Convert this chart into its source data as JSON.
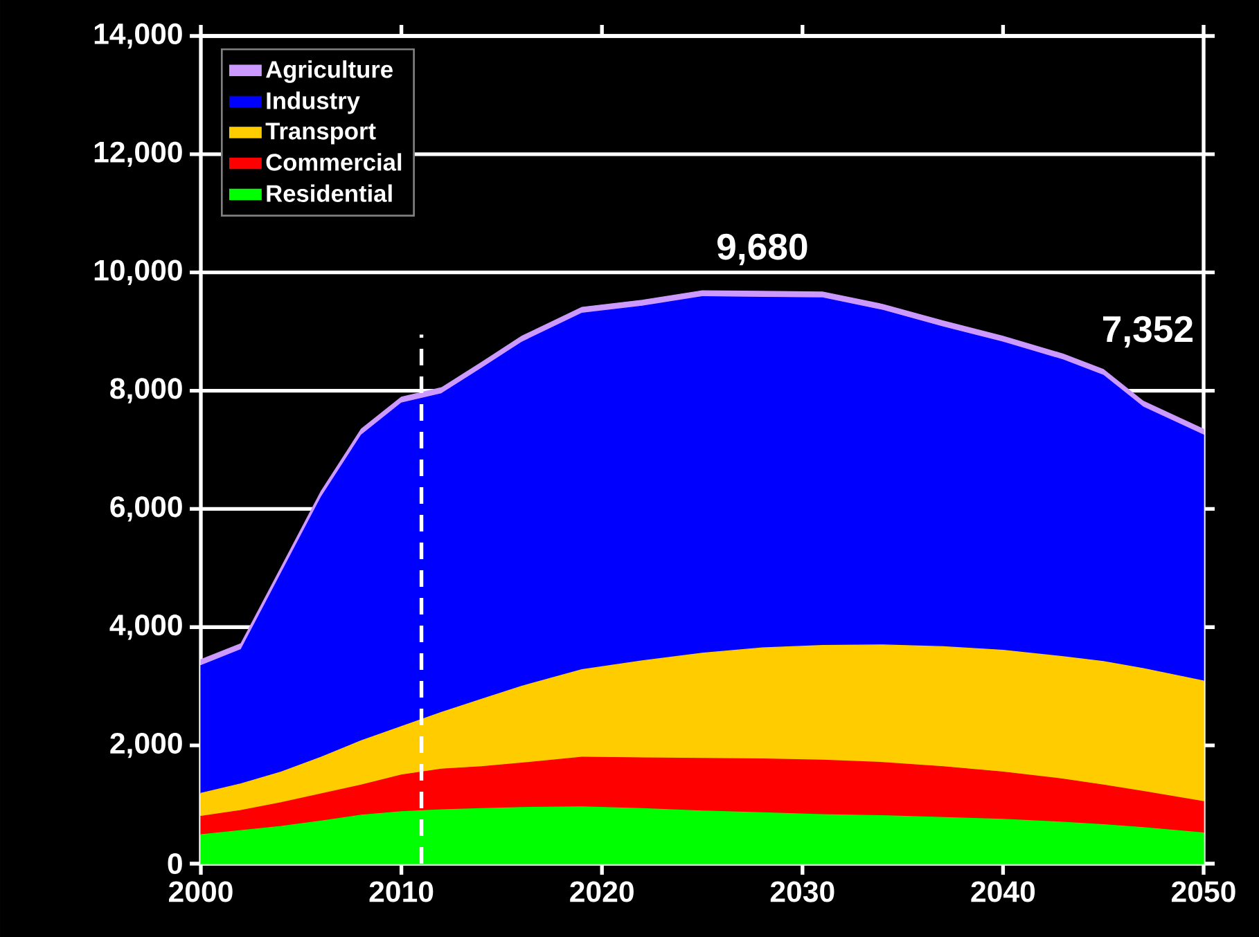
{
  "chart_data": {
    "type": "area",
    "stacked": true,
    "x": [
      2000,
      2002,
      2004,
      2006,
      2008,
      2010,
      2012,
      2014,
      2016,
      2019,
      2022,
      2025,
      2028,
      2031,
      2034,
      2037,
      2040,
      2043,
      2045,
      2047,
      2050
    ],
    "series": [
      {
        "name": "Residential",
        "color": "#00ff00",
        "values": [
          490,
          560,
          630,
          720,
          820,
          880,
          910,
          930,
          950,
          960,
          930,
          890,
          860,
          830,
          810,
          780,
          750,
          700,
          660,
          610,
          520
        ]
      },
      {
        "name": "Commercial",
        "color": "#ff0000",
        "values": [
          310,
          340,
          400,
          460,
          510,
          620,
          690,
          710,
          750,
          840,
          860,
          890,
          910,
          920,
          900,
          860,
          800,
          730,
          670,
          610,
          530
        ]
      },
      {
        "name": "Transport",
        "color": "#ffcc00",
        "values": [
          390,
          450,
          520,
          620,
          750,
          820,
          960,
          1140,
          1300,
          1480,
          1640,
          1780,
          1880,
          1940,
          1990,
          2030,
          2060,
          2070,
          2090,
          2080,
          2040
        ]
      },
      {
        "name": "Industry",
        "color": "#0000ff",
        "values": [
          2160,
          2270,
          3360,
          4400,
          5170,
          5470,
          5390,
          5600,
          5820,
          6030,
          6000,
          6030,
          5930,
          5880,
          5660,
          5410,
          5210,
          5020,
          4840,
          4420,
          4160
        ]
      },
      {
        "name": "Agriculture",
        "color": "#cc99ff",
        "values": [
          100,
          100,
          100,
          100,
          100,
          100,
          100,
          100,
          100,
          100,
          100,
          100,
          100,
          100,
          100,
          100,
          100,
          100,
          100,
          100,
          100
        ]
      }
    ],
    "xlim": [
      2000,
      2050
    ],
    "xticks": [
      2000,
      2010,
      2020,
      2030,
      2040,
      2050
    ],
    "ylim": [
      0,
      14000
    ],
    "yticks": [
      0,
      {
        "value": 2000,
        "label": "2,000"
      },
      {
        "value": 4000,
        "label": "4,000"
      },
      {
        "value": 6000,
        "label": "6,000"
      },
      {
        "value": 8000,
        "label": "8,000"
      },
      {
        "value": 10000,
        "label": "10,000"
      },
      {
        "value": 12000,
        "label": "12,000"
      },
      {
        "value": 14000,
        "label": "14,000"
      }
    ],
    "grid": "y",
    "legend": "top left",
    "ref_lines": [
      {
        "axis": "x",
        "value": 2011,
        "color": "#ffffff",
        "line_style": "dashed"
      }
    ],
    "annotations": [
      {
        "text": "9,680",
        "x": 2028,
        "y": 9680
      },
      "7,352"
    ]
  }
}
